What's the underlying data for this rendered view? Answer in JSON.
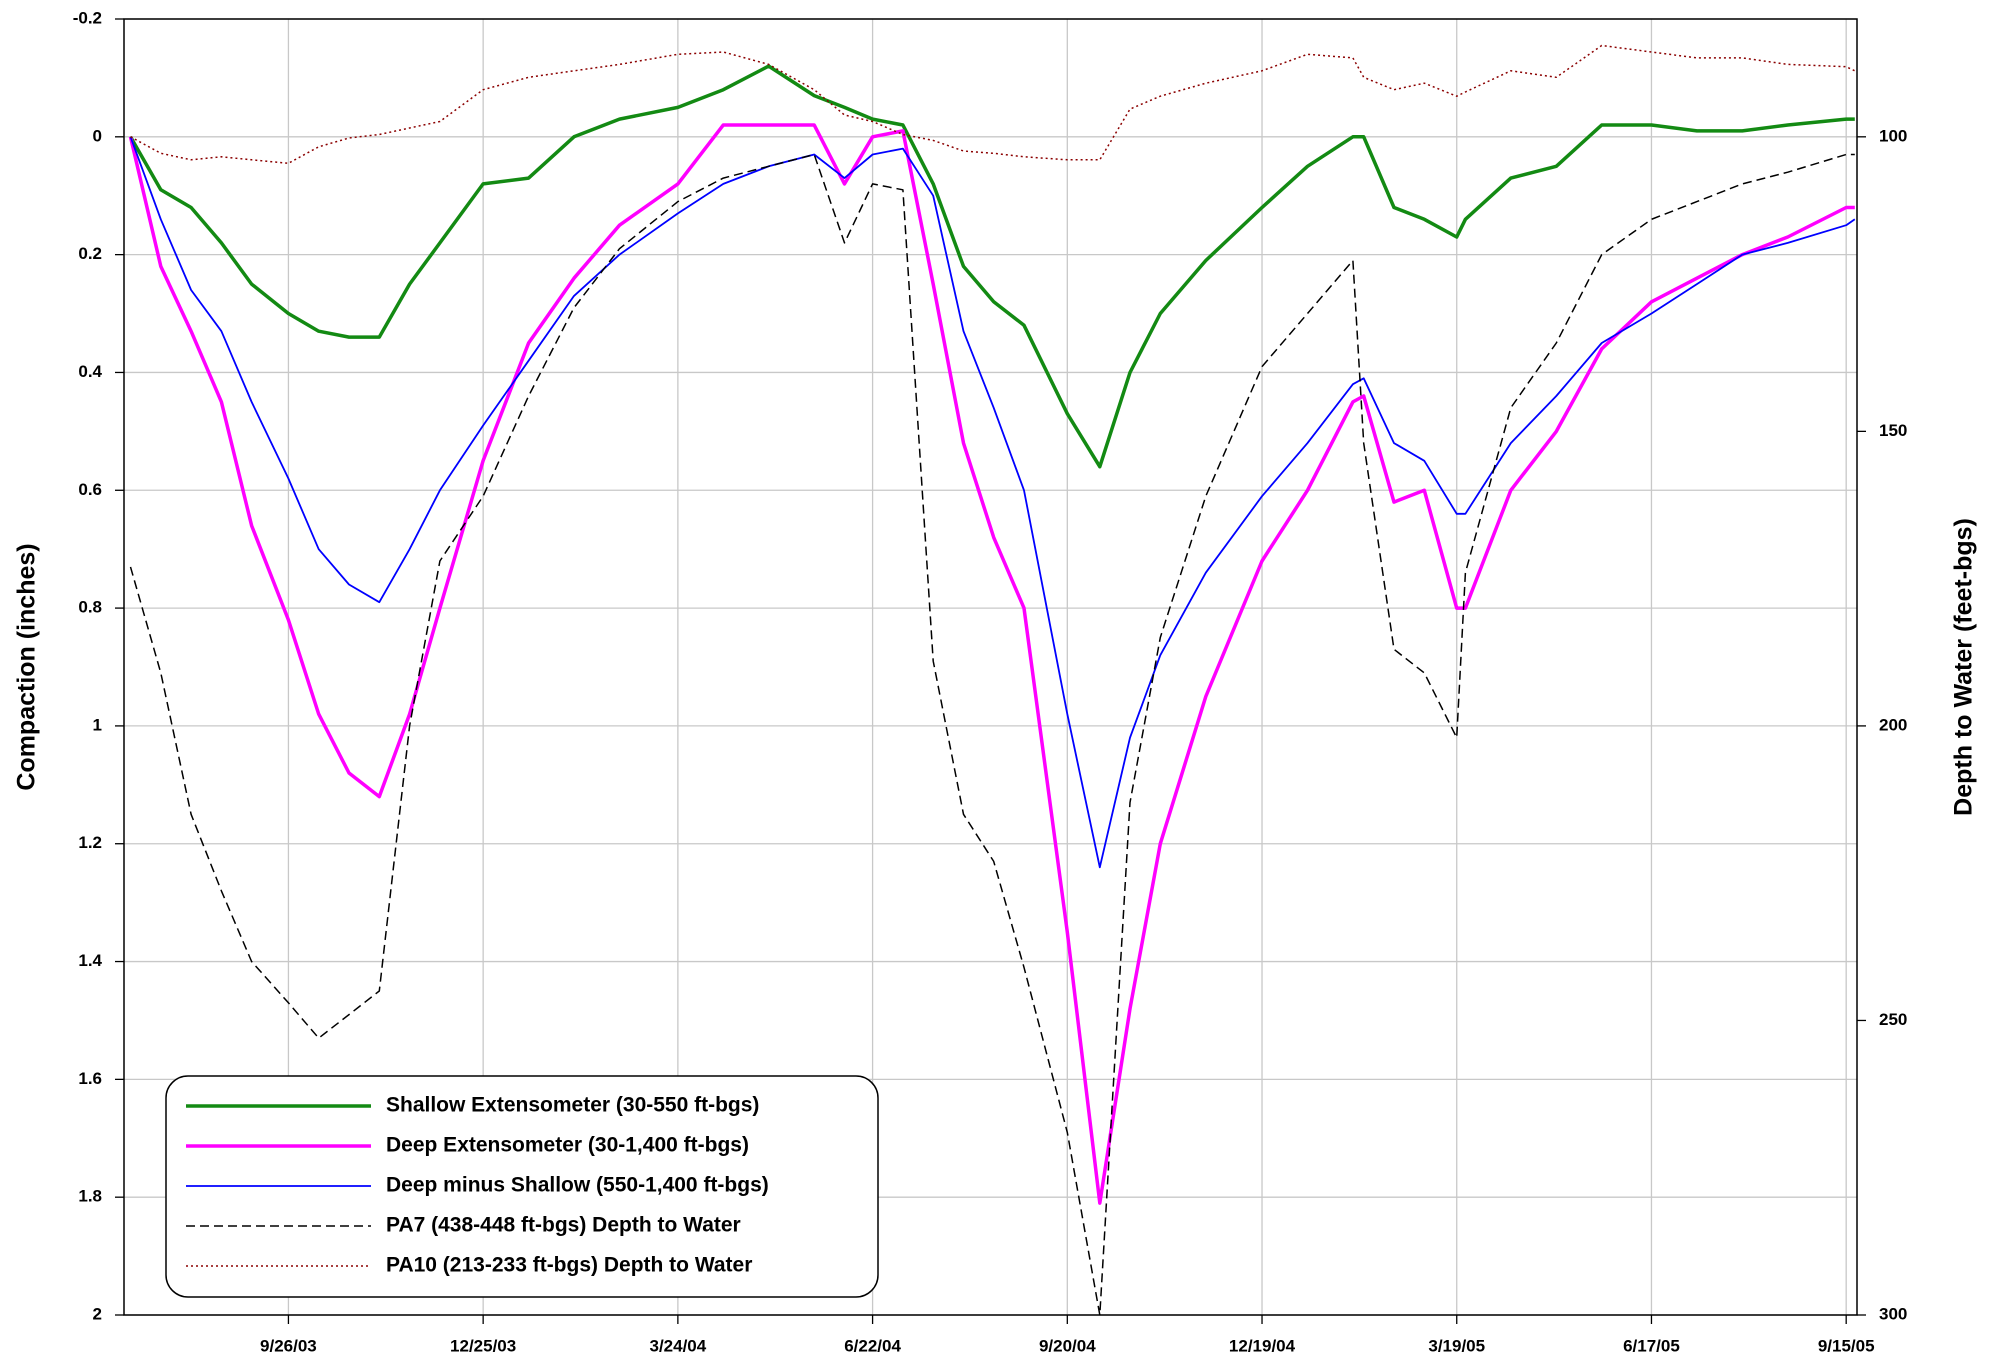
{
  "chart_data": {
    "type": "line",
    "y_label": "Compaction (inches)",
    "y2_label": "Depth to Water (feet-bgs)",
    "x": [
      "7/15/03",
      "7/29/03",
      "8/12/03",
      "8/26/03",
      "9/9/03",
      "9/26/03",
      "10/10/03",
      "10/24/03",
      "11/7/03",
      "11/21/03",
      "12/5/03",
      "12/25/03",
      "1/15/04",
      "2/5/04",
      "2/26/04",
      "3/24/04",
      "4/14/04",
      "5/5/04",
      "5/26/04",
      "6/9/04",
      "6/22/04",
      "7/6/04",
      "7/20/04",
      "8/3/04",
      "8/17/04",
      "8/31/04",
      "9/20/04",
      "10/5/04",
      "10/19/04",
      "11/2/04",
      "11/23/04",
      "12/19/04",
      "1/9/05",
      "1/30/05",
      "2/4/05",
      "2/18/05",
      "3/4/05",
      "3/19/05",
      "3/23/05",
      "4/13/05",
      "5/4/05",
      "5/25/05",
      "6/17/05",
      "7/8/05",
      "7/29/05",
      "8/19/05",
      "9/15/05",
      "9/19/05"
    ],
    "xlim": [
      "7/12/03",
      "9/20/05"
    ],
    "xticks": [
      "9/26/03",
      "12/25/03",
      "3/24/04",
      "6/22/04",
      "9/20/04",
      "12/19/04",
      "3/19/05",
      "6/17/05",
      "9/15/05"
    ],
    "ylim": [
      -0.2,
      2
    ],
    "yticks": [
      -0.2,
      0,
      0.2,
      0.4,
      0.6,
      0.8,
      1,
      1.2,
      1.4,
      1.6,
      1.8,
      2
    ],
    "y_inverted": true,
    "y2lim": [
      80,
      300
    ],
    "y2ticks": [
      100,
      150,
      200,
      250,
      300
    ],
    "y2_inverted": true,
    "grid": true,
    "legend": "lower left",
    "series": [
      {
        "name": "Shallow Extensometer (30-550 ft-bgs)",
        "color": "#138a13",
        "line_width": 3.5,
        "line_style": "solid",
        "values": [
          0,
          0.09,
          0.12,
          0.18,
          0.25,
          0.3,
          0.33,
          0.34,
          0.34,
          0.25,
          0.18,
          0.08,
          0.07,
          0,
          -0.03,
          -0.05,
          -0.08,
          -0.12,
          -0.07,
          -0.05,
          -0.03,
          -0.02,
          0.08,
          0.22,
          0.28,
          0.32,
          0.47,
          0.56,
          0.4,
          0.3,
          0.21,
          0.12,
          0.05,
          0,
          0,
          0.12,
          0.14,
          0.17,
          0.14,
          0.07,
          0.05,
          -0.02,
          -0.02,
          -0.01,
          -0.01,
          -0.02,
          -0.03,
          -0.03
        ]
      },
      {
        "name": "Deep Extensometer (30-1,400 ft-bgs)",
        "color": "#ff00ff",
        "line_width": 3.5,
        "line_style": "solid",
        "values": [
          0,
          0.22,
          0.33,
          0.45,
          0.66,
          0.82,
          0.98,
          1.08,
          1.12,
          0.98,
          0.8,
          0.55,
          0.35,
          0.24,
          0.15,
          0.08,
          -0.02,
          -0.02,
          -0.02,
          0.08,
          0,
          -0.01,
          0.25,
          0.52,
          0.68,
          0.8,
          1.35,
          1.81,
          1.48,
          1.2,
          0.95,
          0.72,
          0.6,
          0.45,
          0.44,
          0.62,
          0.6,
          0.8,
          0.8,
          0.6,
          0.5,
          0.36,
          0.28,
          0.24,
          0.2,
          0.17,
          0.12,
          0.12
        ]
      },
      {
        "name": "Deep minus Shallow (550-1,400 ft-bgs)",
        "color": "#0000ff",
        "line_width": 1.8,
        "line_style": "solid",
        "values": [
          0,
          0.14,
          0.26,
          0.33,
          0.45,
          0.58,
          0.7,
          0.76,
          0.79,
          0.7,
          0.6,
          0.49,
          0.38,
          0.27,
          0.2,
          0.13,
          0.08,
          0.05,
          0.03,
          0.07,
          0.03,
          0.02,
          0.1,
          0.33,
          0.46,
          0.6,
          0.98,
          1.24,
          1.02,
          0.88,
          0.74,
          0.61,
          0.52,
          0.42,
          0.41,
          0.52,
          0.55,
          0.64,
          0.64,
          0.52,
          0.44,
          0.35,
          0.3,
          0.25,
          0.2,
          0.18,
          0.15,
          0.14
        ]
      },
      {
        "name": "PA7 (438-448 ft-bgs) Depth to Water",
        "color": "#000000",
        "line_width": 1.5,
        "line_style": "dashed",
        "axis": "y2",
        "values": [
          173,
          191,
          215,
          228,
          240,
          247,
          253,
          249,
          245,
          200,
          172,
          161,
          144,
          129,
          119,
          111,
          107,
          105,
          103,
          118,
          108,
          109,
          189,
          215,
          223,
          241,
          269,
          300,
          213,
          185,
          161,
          139,
          130,
          121,
          152,
          187,
          191,
          202,
          174,
          146,
          135,
          120,
          114,
          111,
          108,
          106,
          103,
          103
        ]
      },
      {
        "name": "PA10 (213-233 ft-bgs) Depth to Water",
        "color": "#8b0000",
        "line_width": 1.5,
        "line_style": "dotted",
        "axis": "y2",
        "values": [
          100,
          102.8,
          103.9,
          103.4,
          103.9,
          104.5,
          101.7,
          100.2,
          99.6,
          98.5,
          97.4,
          92,
          89.9,
          88.8,
          87.7,
          86,
          85.6,
          87.7,
          92,
          96.3,
          97.4,
          99.6,
          100.6,
          102.4,
          102.8,
          103.4,
          103.9,
          103.9,
          95.3,
          93.1,
          90.9,
          88.8,
          86,
          86.6,
          89.9,
          92,
          90.9,
          93.1,
          92.4,
          88.8,
          89.9,
          84.5,
          85.6,
          86.6,
          86.6,
          87.7,
          88.1,
          88.8
        ]
      }
    ]
  }
}
